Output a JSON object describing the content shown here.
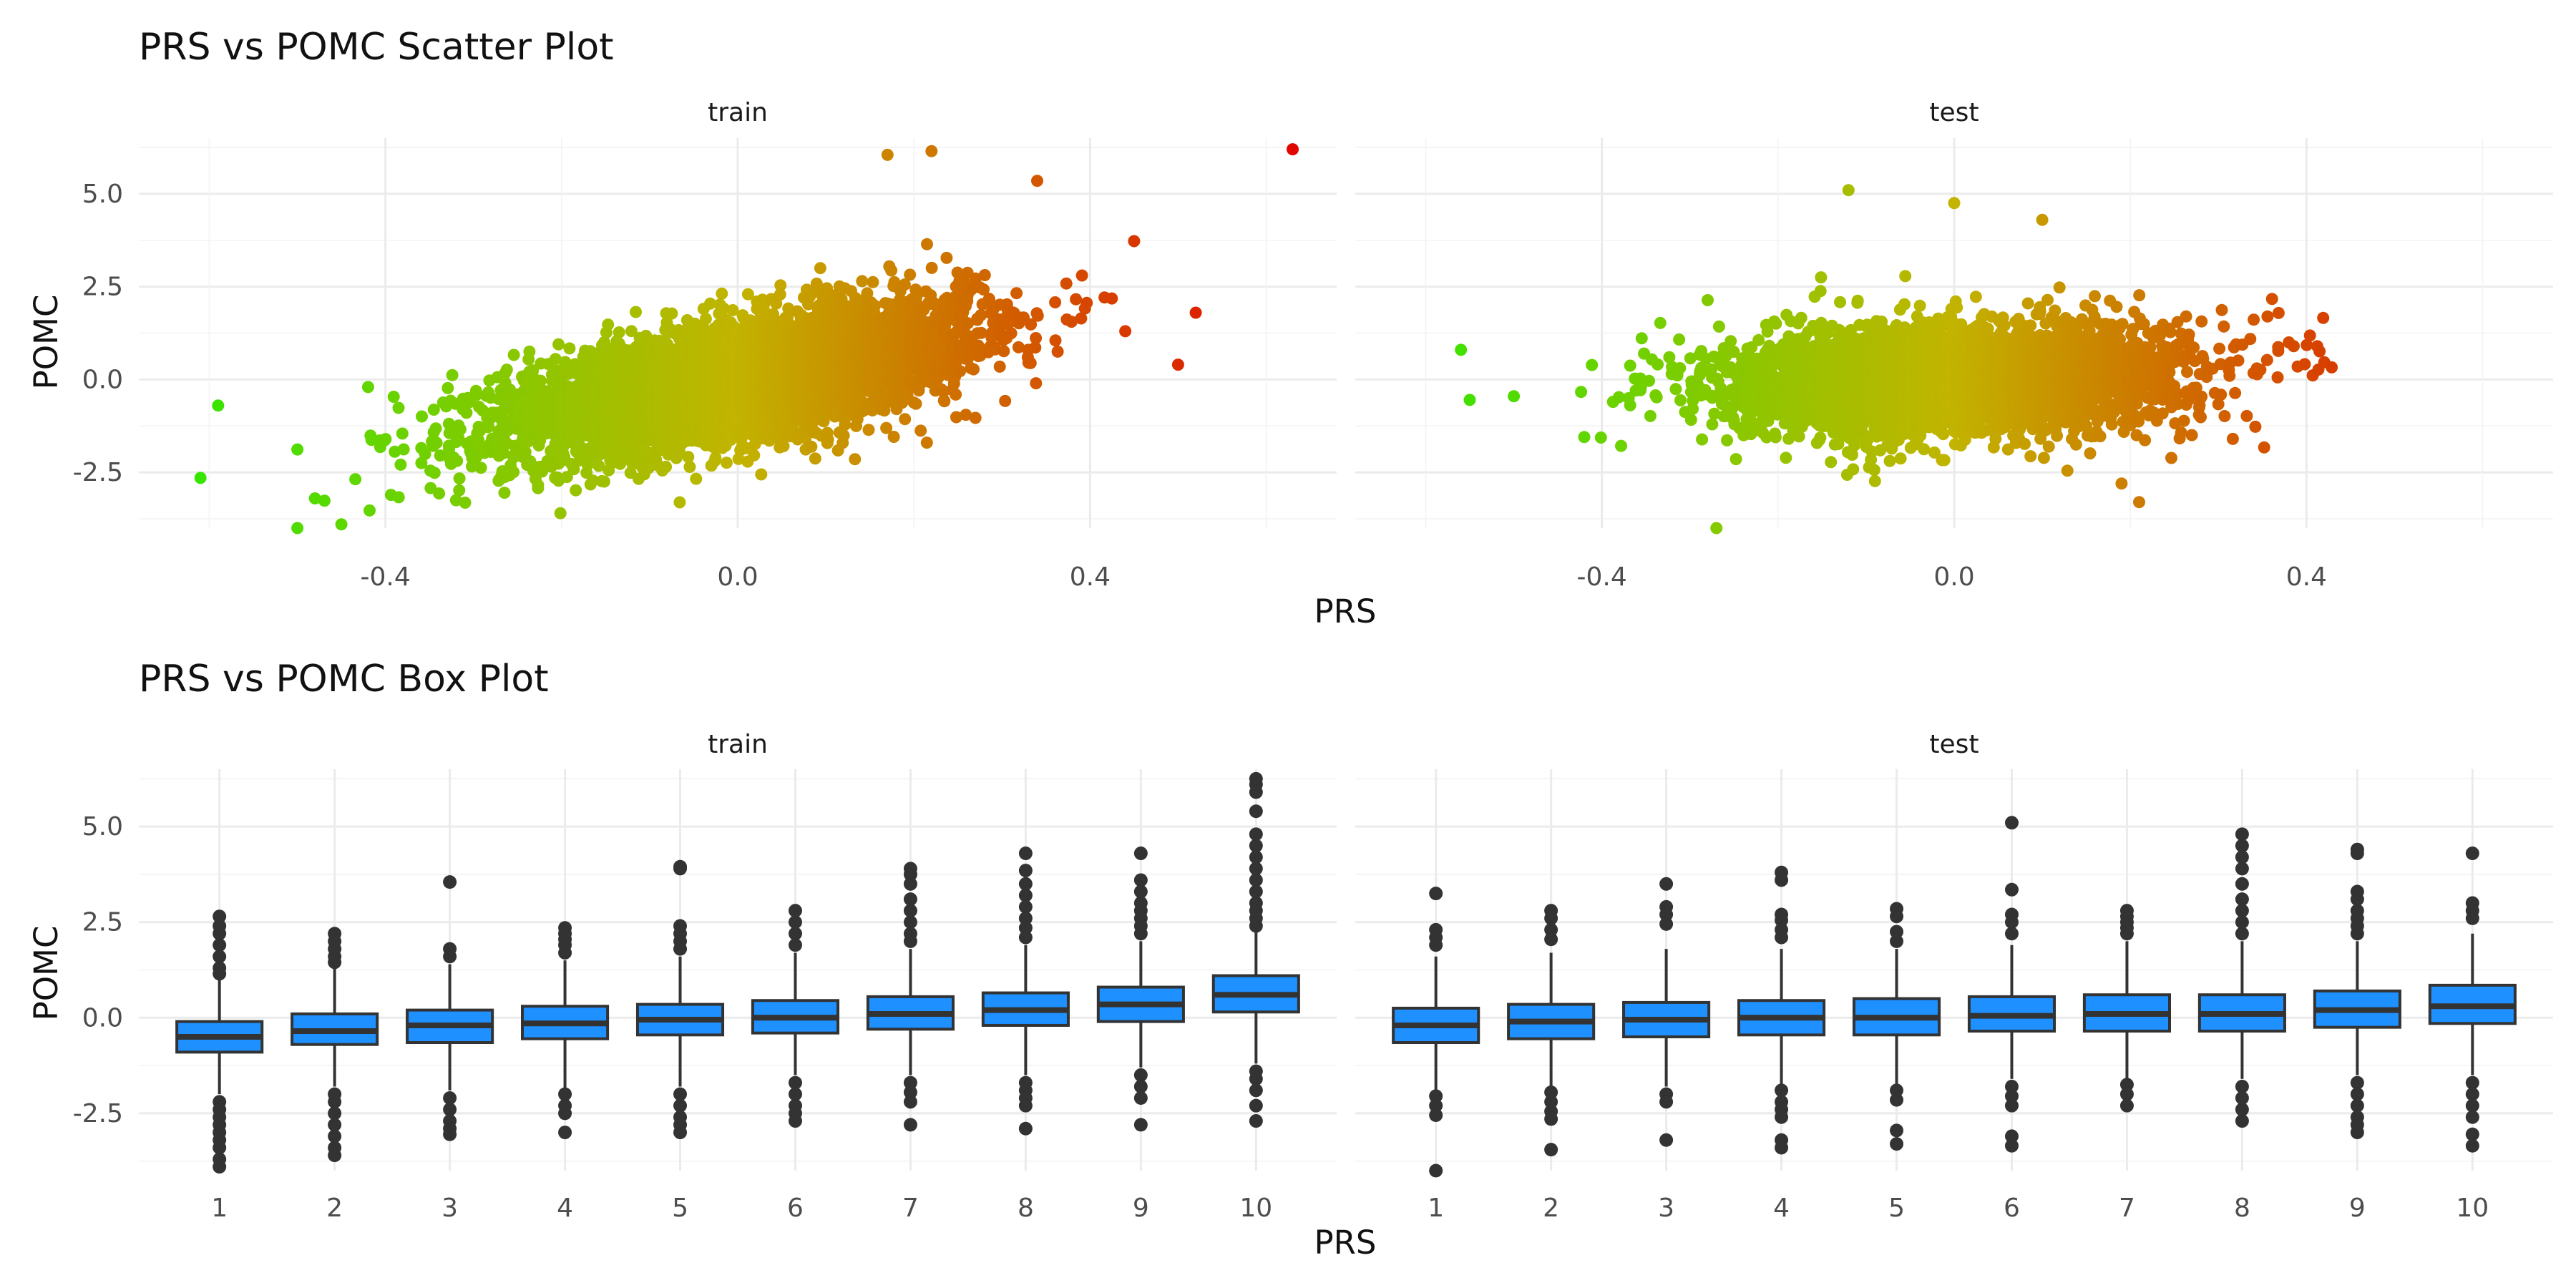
{
  "chart_data": [
    {
      "type": "scatter",
      "title": "PRS vs POMC Scatter Plot",
      "xlabel": "PRS",
      "ylabel": "POMC",
      "xlim": [
        -0.68,
        0.68
      ],
      "ylim": [
        -4.0,
        6.5
      ],
      "x_ticks": [
        -0.4,
        0.0,
        0.4
      ],
      "x_tick_labels": [
        "-0.4",
        "0.0",
        "0.4"
      ],
      "y_ticks": [
        -2.5,
        0.0,
        2.5,
        5.0
      ],
      "y_tick_labels": [
        "-2.5",
        "0.0",
        "2.5",
        "5.0"
      ],
      "grid": true,
      "color_scale": {
        "low": "#2ee800",
        "mid": "#c2b400",
        "high": "#e30000",
        "mapped_to": "PRS"
      },
      "panels": [
        {
          "name": "train",
          "n_points": 5000,
          "regression": {
            "slope": 5.0,
            "intercept": 0.0,
            "x_sd": 0.13,
            "residual_sd": 0.78
          },
          "notable_points": [
            {
              "x": 0.63,
              "y": 6.2
            },
            {
              "x": 0.52,
              "y": 1.8
            },
            {
              "x": 0.5,
              "y": 0.4
            },
            {
              "x": -0.61,
              "y": -2.65
            },
            {
              "x": -0.59,
              "y": -0.7
            },
            {
              "x": 0.44,
              "y": 1.3
            },
            {
              "x": 0.17,
              "y": 6.05
            },
            {
              "x": 0.22,
              "y": 6.15
            },
            {
              "x": 0.34,
              "y": 5.35
            },
            {
              "x": -0.5,
              "y": -4.0
            },
            {
              "x": -0.45,
              "y": -3.9
            },
            {
              "x": -0.48,
              "y": -3.2
            }
          ]
        },
        {
          "name": "test",
          "n_points": 3500,
          "regression": {
            "slope": 0.9,
            "intercept": 0.0,
            "x_sd": 0.13,
            "residual_sd": 0.75
          },
          "notable_points": [
            {
              "x": -0.56,
              "y": 0.8
            },
            {
              "x": -0.55,
              "y": -0.55
            },
            {
              "x": -0.5,
              "y": -0.45
            },
            {
              "x": 0.38,
              "y": 1.0
            },
            {
              "x": 0.39,
              "y": 0.35
            },
            {
              "x": -0.12,
              "y": 5.1
            },
            {
              "x": 0.0,
              "y": 4.75
            },
            {
              "x": 0.21,
              "y": -3.3
            },
            {
              "x": -0.27,
              "y": -4.0
            },
            {
              "x": 0.19,
              "y": -2.8
            },
            {
              "x": 0.1,
              "y": 4.3
            }
          ]
        }
      ]
    },
    {
      "type": "box",
      "title": "PRS vs POMC Box Plot",
      "xlabel": "PRS",
      "ylabel": "POMC",
      "categories": [
        "1",
        "2",
        "3",
        "4",
        "5",
        "6",
        "7",
        "8",
        "9",
        "10"
      ],
      "ylim": [
        -4.0,
        6.5
      ],
      "y_ticks": [
        -2.5,
        0.0,
        2.5,
        5.0
      ],
      "y_tick_labels": [
        "-2.5",
        "0.0",
        "2.5",
        "5.0"
      ],
      "grid": true,
      "box_fill": "#1e90ff",
      "box_stroke": "#333333",
      "panels": [
        {
          "name": "train",
          "boxes": [
            {
              "q1": -0.9,
              "median": -0.5,
              "q3": -0.1,
              "whisker_low": -2.0,
              "whisker_high": 1.0,
              "outliers": [
                2.65,
                2.4,
                2.2,
                1.9,
                1.6,
                1.3,
                1.15,
                -2.2,
                -2.4,
                -2.6,
                -2.8,
                -3.0,
                -3.2,
                -3.4,
                -3.7,
                -3.9
              ]
            },
            {
              "q1": -0.7,
              "median": -0.35,
              "q3": 0.1,
              "whisker_low": -1.8,
              "whisker_high": 1.3,
              "outliers": [
                2.2,
                2.0,
                1.8,
                1.6,
                1.45,
                -2.0,
                -2.2,
                -2.5,
                -2.8,
                -3.1,
                -3.4,
                -3.6
              ]
            },
            {
              "q1": -0.65,
              "median": -0.2,
              "q3": 0.2,
              "whisker_low": -1.9,
              "whisker_high": 1.4,
              "outliers": [
                3.55,
                1.8,
                1.6,
                -2.1,
                -2.4,
                -2.7,
                -2.9,
                -3.05
              ]
            },
            {
              "q1": -0.55,
              "median": -0.15,
              "q3": 0.3,
              "whisker_low": -1.9,
              "whisker_high": 1.5,
              "outliers": [
                2.35,
                2.2,
                2.05,
                1.9,
                1.7,
                -2.0,
                -2.3,
                -2.5,
                -3.0
              ]
            },
            {
              "q1": -0.45,
              "median": -0.05,
              "q3": 0.35,
              "whisker_low": -1.8,
              "whisker_high": 1.6,
              "outliers": [
                3.95,
                3.9,
                2.4,
                2.2,
                2.0,
                1.8,
                -2.0,
                -2.3,
                -2.6,
                -2.8,
                -3.0
              ]
            },
            {
              "q1": -0.4,
              "median": 0.0,
              "q3": 0.45,
              "whisker_low": -1.5,
              "whisker_high": 1.7,
              "outliers": [
                2.8,
                2.5,
                2.2,
                1.9,
                -1.7,
                -2.0,
                -2.3,
                -2.5,
                -2.7
              ]
            },
            {
              "q1": -0.3,
              "median": 0.1,
              "q3": 0.55,
              "whisker_low": -1.5,
              "whisker_high": 1.8,
              "outliers": [
                3.9,
                3.75,
                3.5,
                3.1,
                2.8,
                2.5,
                2.2,
                2.0,
                -1.7,
                -1.95,
                -2.2,
                -2.8
              ]
            },
            {
              "q1": -0.2,
              "median": 0.2,
              "q3": 0.65,
              "whisker_low": -1.5,
              "whisker_high": 1.9,
              "outliers": [
                4.3,
                3.85,
                3.5,
                3.2,
                2.9,
                2.6,
                2.35,
                2.1,
                -1.7,
                -1.9,
                -2.1,
                -2.3,
                -2.9
              ]
            },
            {
              "q1": -0.1,
              "median": 0.35,
              "q3": 0.8,
              "whisker_low": -1.3,
              "whisker_high": 2.0,
              "outliers": [
                4.3,
                3.6,
                3.3,
                3.0,
                2.8,
                2.6,
                2.4,
                2.2,
                -1.5,
                -1.8,
                -2.1,
                -2.8
              ]
            },
            {
              "q1": 0.15,
              "median": 0.6,
              "q3": 1.1,
              "whisker_low": -1.2,
              "whisker_high": 2.3,
              "outliers": [
                6.25,
                6.1,
                5.9,
                5.4,
                4.8,
                4.5,
                4.2,
                3.9,
                3.6,
                3.3,
                3.0,
                2.8,
                2.6,
                2.4,
                -1.4,
                -1.6,
                -1.9,
                -2.3,
                -2.7
              ]
            }
          ]
        },
        {
          "name": "test",
          "boxes": [
            {
              "q1": -0.65,
              "median": -0.2,
              "q3": 0.25,
              "whisker_low": -2.0,
              "whisker_high": 1.6,
              "outliers": [
                3.25,
                2.3,
                2.1,
                1.9,
                -2.05,
                -2.3,
                -2.55,
                -4.0
              ]
            },
            {
              "q1": -0.55,
              "median": -0.1,
              "q3": 0.35,
              "whisker_low": -1.8,
              "whisker_high": 1.7,
              "outliers": [
                2.8,
                2.6,
                2.3,
                2.05,
                -1.95,
                -2.2,
                -2.45,
                -2.65,
                -3.45
              ]
            },
            {
              "q1": -0.5,
              "median": -0.05,
              "q3": 0.4,
              "whisker_low": -1.8,
              "whisker_high": 1.8,
              "outliers": [
                3.5,
                2.9,
                2.7,
                2.45,
                -2.0,
                -2.2,
                -3.2
              ]
            },
            {
              "q1": -0.45,
              "median": 0.0,
              "q3": 0.45,
              "whisker_low": -1.8,
              "whisker_high": 1.8,
              "outliers": [
                3.8,
                3.6,
                2.7,
                2.55,
                2.3,
                2.1,
                -1.9,
                -2.2,
                -2.4,
                -2.6,
                -3.2,
                -3.4
              ]
            },
            {
              "q1": -0.45,
              "median": 0.0,
              "q3": 0.5,
              "whisker_low": -1.8,
              "whisker_high": 1.8,
              "outliers": [
                2.85,
                2.65,
                2.25,
                2.0,
                -1.9,
                -2.15,
                -2.95,
                -3.3
              ]
            },
            {
              "q1": -0.35,
              "median": 0.05,
              "q3": 0.55,
              "whisker_low": -1.6,
              "whisker_high": 1.9,
              "outliers": [
                5.1,
                3.35,
                2.7,
                2.5,
                2.2,
                -1.8,
                -2.05,
                -2.3,
                -3.1,
                -3.35
              ]
            },
            {
              "q1": -0.35,
              "median": 0.1,
              "q3": 0.6,
              "whisker_low": -1.6,
              "whisker_high": 2.0,
              "outliers": [
                2.8,
                2.65,
                2.5,
                2.35,
                2.2,
                -1.75,
                -2.0,
                -2.3
              ]
            },
            {
              "q1": -0.35,
              "median": 0.1,
              "q3": 0.6,
              "whisker_low": -1.6,
              "whisker_high": 2.0,
              "outliers": [
                4.8,
                4.5,
                4.2,
                3.9,
                3.5,
                3.1,
                2.8,
                2.5,
                2.2,
                -1.8,
                -2.1,
                -2.4,
                -2.7
              ]
            },
            {
              "q1": -0.25,
              "median": 0.2,
              "q3": 0.7,
              "whisker_low": -1.5,
              "whisker_high": 2.0,
              "outliers": [
                4.4,
                4.3,
                3.3,
                3.1,
                2.8,
                2.6,
                2.4,
                2.2,
                -1.7,
                -2.0,
                -2.3,
                -2.6,
                -2.8,
                -3.0
              ]
            },
            {
              "q1": -0.15,
              "median": 0.3,
              "q3": 0.85,
              "whisker_low": -1.5,
              "whisker_high": 2.2,
              "outliers": [
                4.3,
                3.0,
                2.8,
                2.6,
                -1.7,
                -2.0,
                -2.3,
                -2.6,
                -3.05,
                -3.35
              ]
            }
          ]
        }
      ]
    }
  ]
}
